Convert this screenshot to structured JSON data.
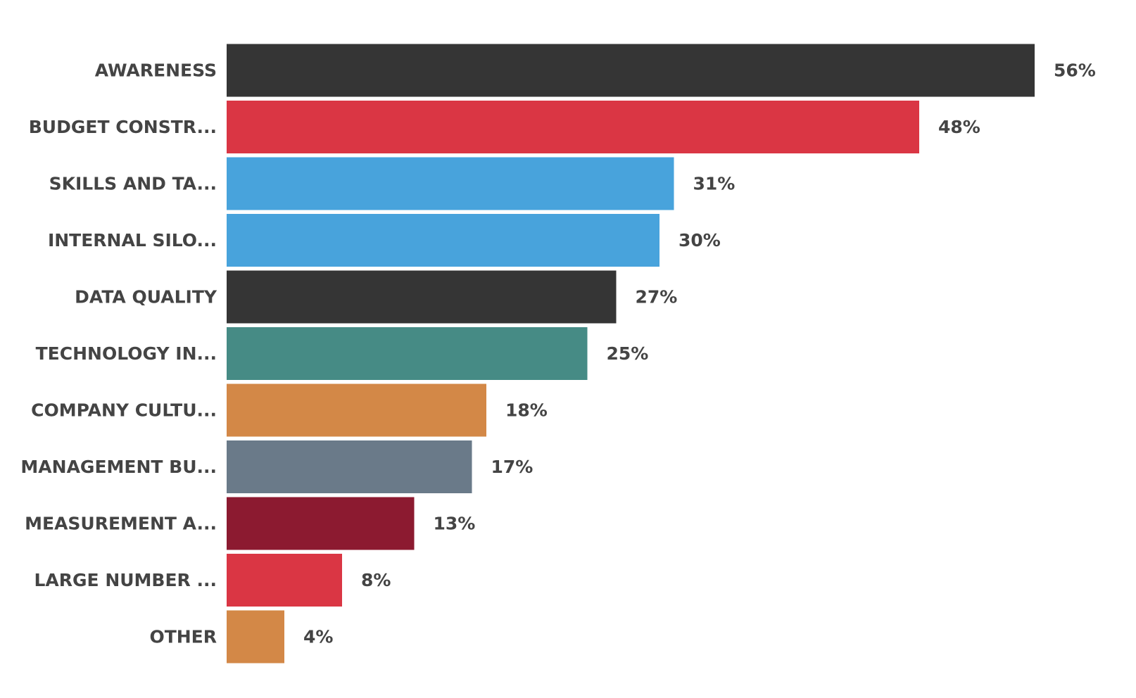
{
  "chart_data": {
    "type": "bar",
    "orientation": "horizontal",
    "title": "",
    "xlabel": "",
    "ylabel": "",
    "xlim": [
      0,
      56
    ],
    "grid": false,
    "legend": "none",
    "categories": [
      "AWARENESS",
      "BUDGET CONSTR...",
      "SKILLS AND TA...",
      "INTERNAL SILO...",
      "DATA QUALITY",
      "TECHNOLOGY IN...",
      "COMPANY CULTU...",
      "MANAGEMENT BU...",
      "MEASUREMENT A...",
      "LARGE NUMBER ...",
      "OTHER"
    ],
    "values": [
      56,
      48,
      31,
      30,
      27,
      25,
      18,
      17,
      13,
      8,
      4
    ],
    "value_labels": [
      "56%",
      "48%",
      "31%",
      "30%",
      "27%",
      "25%",
      "18%",
      "17%",
      "13%",
      "8%",
      "4%"
    ],
    "colors": [
      "#353535",
      "#da3644",
      "#48a3dc",
      "#48a3dc",
      "#353535",
      "#468b85",
      "#d38847",
      "#6a7a89",
      "#8c1a30",
      "#da3644",
      "#d38847"
    ]
  }
}
